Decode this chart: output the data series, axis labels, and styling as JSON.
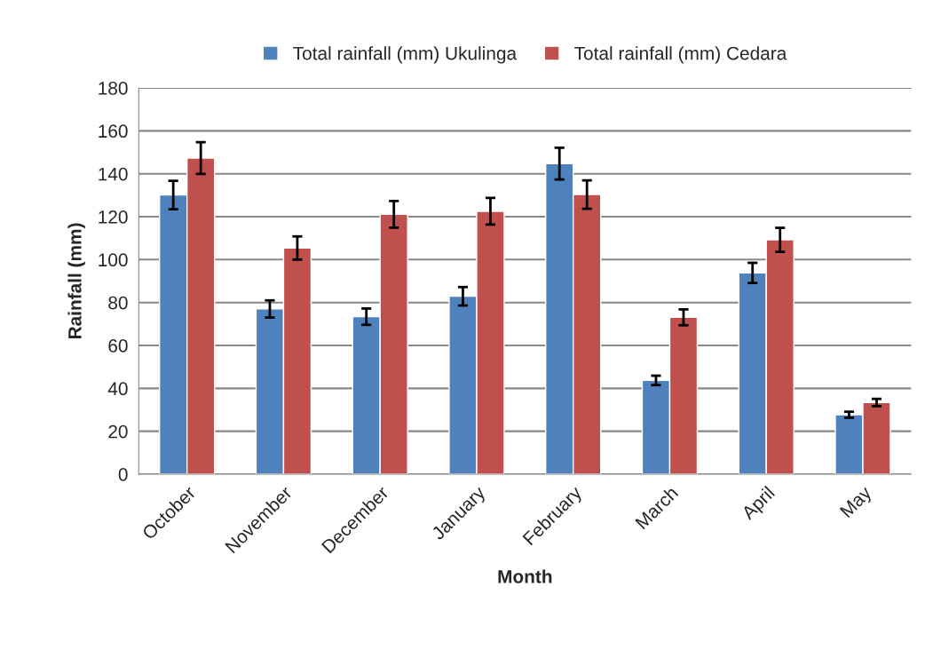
{
  "chart_data": {
    "type": "bar",
    "categories": [
      "October",
      "November",
      "December",
      "January",
      "February",
      "March",
      "April",
      "May"
    ],
    "series": [
      {
        "name": "Total rainfall (mm) Ukulinga",
        "color": "#4f81bd",
        "values": [
          130.1,
          77.0,
          73.4,
          82.9,
          144.7,
          43.7,
          93.8,
          27.7
        ],
        "errors": [
          6.6,
          4.0,
          3.8,
          4.3,
          7.4,
          2.2,
          4.7,
          1.4
        ]
      },
      {
        "name": "Total rainfall (mm) Cedara",
        "color": "#c0504d",
        "values": [
          147.3,
          105.4,
          121.1,
          122.5,
          130.3,
          73.1,
          109.2,
          33.4
        ],
        "errors": [
          7.4,
          5.4,
          6.2,
          6.2,
          6.6,
          3.7,
          5.6,
          1.7
        ]
      }
    ],
    "xlabel": "Month",
    "ylabel": "Rainfall (mm)",
    "ylim": [
      0,
      180
    ],
    "yticks": [
      0,
      20,
      40,
      60,
      80,
      100,
      120,
      140,
      160,
      180
    ],
    "grid": "y",
    "legend": "top"
  }
}
